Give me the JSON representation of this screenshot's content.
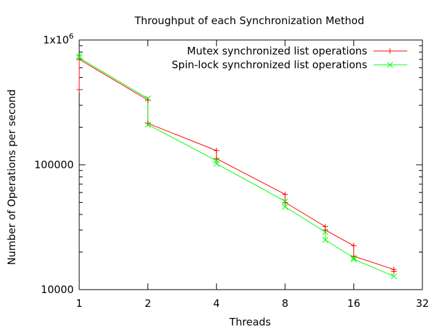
{
  "chart_data": {
    "type": "line",
    "title": "Throughput of each Synchronization Method",
    "xlabel": "Threads",
    "ylabel": "Number of Operations per second",
    "x_scale": "log2",
    "y_scale": "log10",
    "xlim": [
      1,
      32
    ],
    "ylim": [
      10000,
      1000000
    ],
    "x_ticks": [
      {
        "value": 1,
        "label": "1"
      },
      {
        "value": 2,
        "label": "2"
      },
      {
        "value": 4,
        "label": "4"
      },
      {
        "value": 8,
        "label": "8"
      },
      {
        "value": 16,
        "label": "16"
      },
      {
        "value": 32,
        "label": "32"
      }
    ],
    "y_ticks": [
      {
        "value": 10000,
        "label": "10000"
      },
      {
        "value": 100000,
        "label": "100000"
      },
      {
        "value": 1000000,
        "label": "1x10",
        "sup": "6"
      }
    ],
    "legend_position": "top-right",
    "series": [
      {
        "name": "Mutex synchronized list operations",
        "color": "#ff0000",
        "marker": "plus",
        "x": [
          1,
          1,
          2,
          2,
          4,
          4,
          8,
          8,
          12,
          12,
          16,
          16,
          24,
          24
        ],
        "y": [
          400000,
          700000,
          330000,
          215000,
          130000,
          112000,
          58000,
          50000,
          32000,
          30000,
          22500,
          18500,
          14500,
          14000
        ]
      },
      {
        "name": "Spin-lock synchronized list operations",
        "color": "#00ff00",
        "marker": "cross",
        "x": [
          1,
          1,
          2,
          2,
          4,
          4,
          8,
          8,
          12,
          12,
          16,
          16,
          24
        ],
        "y": [
          740000,
          720000,
          340000,
          210000,
          108000,
          102000,
          51000,
          46000,
          29000,
          25000,
          18000,
          17500,
          12800
        ]
      }
    ]
  }
}
